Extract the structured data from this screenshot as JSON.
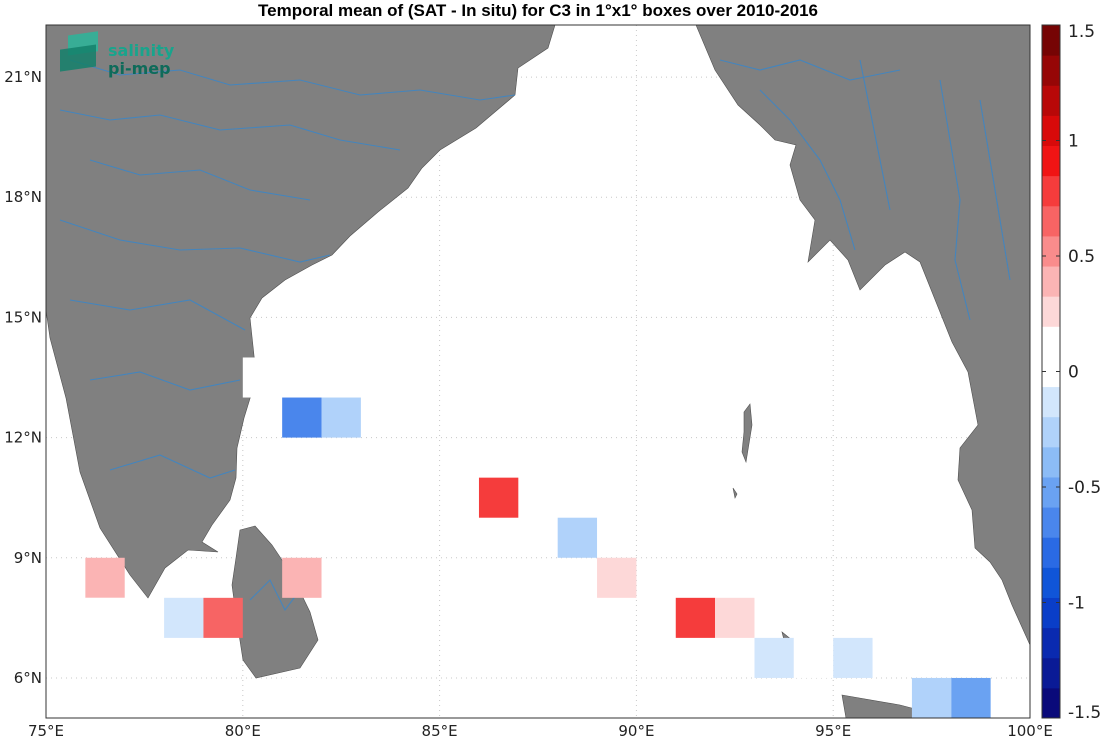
{
  "title": "Temporal mean of (SAT - In situ) for C3 in 1°x1° boxes over 2010-2016",
  "logo": {
    "line1": "salinity",
    "line2": "pi-mep"
  },
  "map": {
    "lon_range": [
      75,
      100
    ],
    "lat_range": [
      5,
      22.3
    ],
    "land_color": "#808080",
    "river_color": "#3a86c8",
    "grid": true,
    "lon_ticks": [
      {
        "value": 75,
        "label": "75°E"
      },
      {
        "value": 80,
        "label": "80°E"
      },
      {
        "value": 85,
        "label": "85°E"
      },
      {
        "value": 90,
        "label": "90°E"
      },
      {
        "value": 95,
        "label": "95°E"
      },
      {
        "value": 100,
        "label": "100°E"
      }
    ],
    "lat_ticks": [
      {
        "value": 6,
        "label": "6°N"
      },
      {
        "value": 9,
        "label": "9°N"
      },
      {
        "value": 12,
        "label": "12°N"
      },
      {
        "value": 15,
        "label": "15°N"
      },
      {
        "value": 18,
        "label": "18°N"
      },
      {
        "value": 21,
        "label": "21°N"
      }
    ]
  },
  "boxes": [
    {
      "lon": 80,
      "lat": 13,
      "value": 0.12
    },
    {
      "lon": 81,
      "lat": 12,
      "value": -0.6
    },
    {
      "lon": 82,
      "lat": 12,
      "value": -0.3
    },
    {
      "lon": 86,
      "lat": 10,
      "value": 0.8
    },
    {
      "lon": 88,
      "lat": 9,
      "value": -0.3
    },
    {
      "lon": 89,
      "lat": 8,
      "value": 0.3
    },
    {
      "lon": 76,
      "lat": 8,
      "value": 0.45
    },
    {
      "lon": 81,
      "lat": 8,
      "value": 0.45
    },
    {
      "lon": 76,
      "lat": 7,
      "value": 0.12
    },
    {
      "lon": 78,
      "lat": 7,
      "value": -0.12
    },
    {
      "lon": 79,
      "lat": 7,
      "value": 0.65
    },
    {
      "lon": 91,
      "lat": 7,
      "value": 0.8
    },
    {
      "lon": 92,
      "lat": 7,
      "value": 0.3
    },
    {
      "lon": 93,
      "lat": 6,
      "value": -0.12
    },
    {
      "lon": 94,
      "lat": 6,
      "value": 0.12
    },
    {
      "lon": 95,
      "lat": 6,
      "value": -0.12
    },
    {
      "lon": 81,
      "lat": 5,
      "value": 0.12
    },
    {
      "lon": 97,
      "lat": 5,
      "value": -0.3
    },
    {
      "lon": 98,
      "lat": 5,
      "value": -0.5
    }
  ],
  "colorbar": {
    "min": -1.5,
    "max": 1.5,
    "ticks": [
      {
        "value": 1.5,
        "label": "1.5"
      },
      {
        "value": 1,
        "label": "1"
      },
      {
        "value": 0.5,
        "label": "0.5"
      },
      {
        "value": 0,
        "label": "0"
      },
      {
        "value": -0.5,
        "label": "-0.5"
      },
      {
        "value": -1,
        "label": "-1"
      },
      {
        "value": -1.5,
        "label": "-1.5"
      }
    ],
    "colors": [
      "#0a0a7a",
      "#0a1a96",
      "#0a2ab0",
      "#0a3ec8",
      "#1055d8",
      "#2a6ae4",
      "#4a86ec",
      "#6aa2f2",
      "#8cbcf6",
      "#b0d2fa",
      "#d2e6fc",
      "#ffffff",
      "#ffffff",
      "#fdd8d8",
      "#fbb4b4",
      "#f98c8c",
      "#f76464",
      "#f53c3c",
      "#f01414",
      "#d80a0a",
      "#b80808",
      "#960606",
      "#760404"
    ]
  }
}
